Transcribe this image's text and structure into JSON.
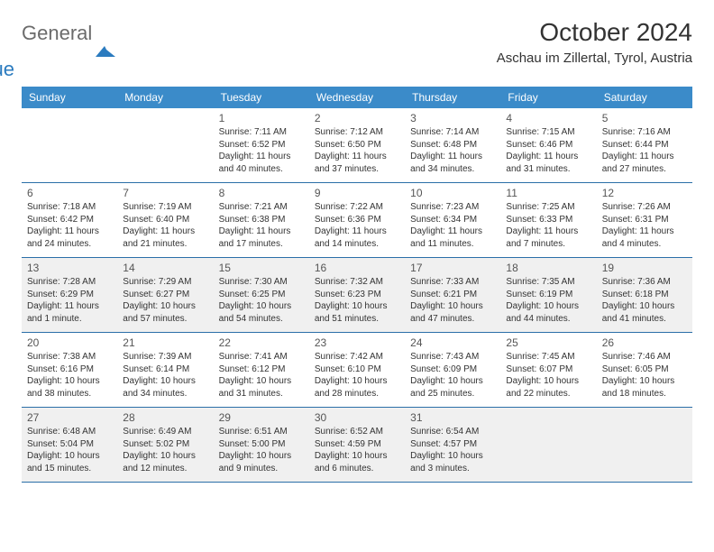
{
  "brand": {
    "name_gray": "General",
    "name_blue": "Blue"
  },
  "title": "October 2024",
  "location": "Aschau im Zillertal, Tyrol, Austria",
  "colors": {
    "header_bg": "#3b8bc9",
    "border": "#2b6fa8",
    "shaded_bg": "#f0f0f0",
    "text": "#333333",
    "logo_gray": "#6b6b6b",
    "logo_blue": "#2b7bbf"
  },
  "weekdays": [
    "Sunday",
    "Monday",
    "Tuesday",
    "Wednesday",
    "Thursday",
    "Friday",
    "Saturday"
  ],
  "weeks": [
    {
      "shaded": false,
      "days": [
        {
          "num": "",
          "sunrise": "",
          "sunset": "",
          "daylight": ""
        },
        {
          "num": "",
          "sunrise": "",
          "sunset": "",
          "daylight": ""
        },
        {
          "num": "1",
          "sunrise": "Sunrise: 7:11 AM",
          "sunset": "Sunset: 6:52 PM",
          "daylight": "Daylight: 11 hours and 40 minutes."
        },
        {
          "num": "2",
          "sunrise": "Sunrise: 7:12 AM",
          "sunset": "Sunset: 6:50 PM",
          "daylight": "Daylight: 11 hours and 37 minutes."
        },
        {
          "num": "3",
          "sunrise": "Sunrise: 7:14 AM",
          "sunset": "Sunset: 6:48 PM",
          "daylight": "Daylight: 11 hours and 34 minutes."
        },
        {
          "num": "4",
          "sunrise": "Sunrise: 7:15 AM",
          "sunset": "Sunset: 6:46 PM",
          "daylight": "Daylight: 11 hours and 31 minutes."
        },
        {
          "num": "5",
          "sunrise": "Sunrise: 7:16 AM",
          "sunset": "Sunset: 6:44 PM",
          "daylight": "Daylight: 11 hours and 27 minutes."
        }
      ]
    },
    {
      "shaded": false,
      "days": [
        {
          "num": "6",
          "sunrise": "Sunrise: 7:18 AM",
          "sunset": "Sunset: 6:42 PM",
          "daylight": "Daylight: 11 hours and 24 minutes."
        },
        {
          "num": "7",
          "sunrise": "Sunrise: 7:19 AM",
          "sunset": "Sunset: 6:40 PM",
          "daylight": "Daylight: 11 hours and 21 minutes."
        },
        {
          "num": "8",
          "sunrise": "Sunrise: 7:21 AM",
          "sunset": "Sunset: 6:38 PM",
          "daylight": "Daylight: 11 hours and 17 minutes."
        },
        {
          "num": "9",
          "sunrise": "Sunrise: 7:22 AM",
          "sunset": "Sunset: 6:36 PM",
          "daylight": "Daylight: 11 hours and 14 minutes."
        },
        {
          "num": "10",
          "sunrise": "Sunrise: 7:23 AM",
          "sunset": "Sunset: 6:34 PM",
          "daylight": "Daylight: 11 hours and 11 minutes."
        },
        {
          "num": "11",
          "sunrise": "Sunrise: 7:25 AM",
          "sunset": "Sunset: 6:33 PM",
          "daylight": "Daylight: 11 hours and 7 minutes."
        },
        {
          "num": "12",
          "sunrise": "Sunrise: 7:26 AM",
          "sunset": "Sunset: 6:31 PM",
          "daylight": "Daylight: 11 hours and 4 minutes."
        }
      ]
    },
    {
      "shaded": true,
      "days": [
        {
          "num": "13",
          "sunrise": "Sunrise: 7:28 AM",
          "sunset": "Sunset: 6:29 PM",
          "daylight": "Daylight: 11 hours and 1 minute."
        },
        {
          "num": "14",
          "sunrise": "Sunrise: 7:29 AM",
          "sunset": "Sunset: 6:27 PM",
          "daylight": "Daylight: 10 hours and 57 minutes."
        },
        {
          "num": "15",
          "sunrise": "Sunrise: 7:30 AM",
          "sunset": "Sunset: 6:25 PM",
          "daylight": "Daylight: 10 hours and 54 minutes."
        },
        {
          "num": "16",
          "sunrise": "Sunrise: 7:32 AM",
          "sunset": "Sunset: 6:23 PM",
          "daylight": "Daylight: 10 hours and 51 minutes."
        },
        {
          "num": "17",
          "sunrise": "Sunrise: 7:33 AM",
          "sunset": "Sunset: 6:21 PM",
          "daylight": "Daylight: 10 hours and 47 minutes."
        },
        {
          "num": "18",
          "sunrise": "Sunrise: 7:35 AM",
          "sunset": "Sunset: 6:19 PM",
          "daylight": "Daylight: 10 hours and 44 minutes."
        },
        {
          "num": "19",
          "sunrise": "Sunrise: 7:36 AM",
          "sunset": "Sunset: 6:18 PM",
          "daylight": "Daylight: 10 hours and 41 minutes."
        }
      ]
    },
    {
      "shaded": false,
      "days": [
        {
          "num": "20",
          "sunrise": "Sunrise: 7:38 AM",
          "sunset": "Sunset: 6:16 PM",
          "daylight": "Daylight: 10 hours and 38 minutes."
        },
        {
          "num": "21",
          "sunrise": "Sunrise: 7:39 AM",
          "sunset": "Sunset: 6:14 PM",
          "daylight": "Daylight: 10 hours and 34 minutes."
        },
        {
          "num": "22",
          "sunrise": "Sunrise: 7:41 AM",
          "sunset": "Sunset: 6:12 PM",
          "daylight": "Daylight: 10 hours and 31 minutes."
        },
        {
          "num": "23",
          "sunrise": "Sunrise: 7:42 AM",
          "sunset": "Sunset: 6:10 PM",
          "daylight": "Daylight: 10 hours and 28 minutes."
        },
        {
          "num": "24",
          "sunrise": "Sunrise: 7:43 AM",
          "sunset": "Sunset: 6:09 PM",
          "daylight": "Daylight: 10 hours and 25 minutes."
        },
        {
          "num": "25",
          "sunrise": "Sunrise: 7:45 AM",
          "sunset": "Sunset: 6:07 PM",
          "daylight": "Daylight: 10 hours and 22 minutes."
        },
        {
          "num": "26",
          "sunrise": "Sunrise: 7:46 AM",
          "sunset": "Sunset: 6:05 PM",
          "daylight": "Daylight: 10 hours and 18 minutes."
        }
      ]
    },
    {
      "shaded": true,
      "days": [
        {
          "num": "27",
          "sunrise": "Sunrise: 6:48 AM",
          "sunset": "Sunset: 5:04 PM",
          "daylight": "Daylight: 10 hours and 15 minutes."
        },
        {
          "num": "28",
          "sunrise": "Sunrise: 6:49 AM",
          "sunset": "Sunset: 5:02 PM",
          "daylight": "Daylight: 10 hours and 12 minutes."
        },
        {
          "num": "29",
          "sunrise": "Sunrise: 6:51 AM",
          "sunset": "Sunset: 5:00 PM",
          "daylight": "Daylight: 10 hours and 9 minutes."
        },
        {
          "num": "30",
          "sunrise": "Sunrise: 6:52 AM",
          "sunset": "Sunset: 4:59 PM",
          "daylight": "Daylight: 10 hours and 6 minutes."
        },
        {
          "num": "31",
          "sunrise": "Sunrise: 6:54 AM",
          "sunset": "Sunset: 4:57 PM",
          "daylight": "Daylight: 10 hours and 3 minutes."
        },
        {
          "num": "",
          "sunrise": "",
          "sunset": "",
          "daylight": ""
        },
        {
          "num": "",
          "sunrise": "",
          "sunset": "",
          "daylight": ""
        }
      ]
    }
  ]
}
